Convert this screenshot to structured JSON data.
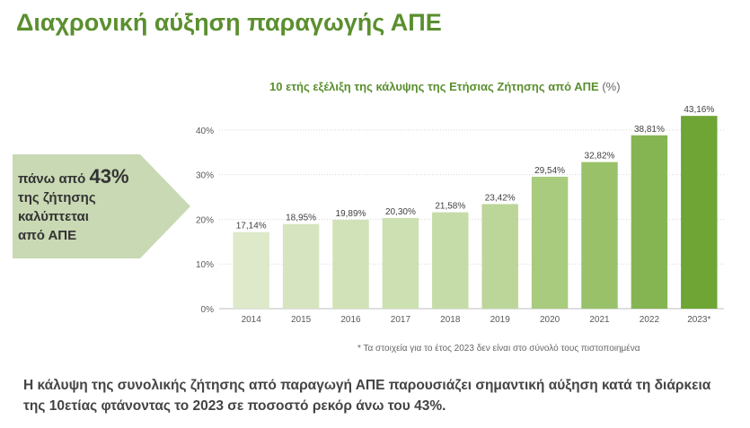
{
  "page": {
    "title": "Διαχρονική αύξηση παραγωγής ΑΠΕ",
    "summary": "Η κάλυψη της συνολικής ζήτησης από παραγωγή ΑΠΕ παρουσιάζει σημαντική αύξηση κατά τη διάρκεια της 10ετίας φτάνοντας το 2023 σε ποσοστό ρεκόρ άνω του 43%."
  },
  "callout": {
    "prefix": "πάνω από ",
    "highlight": "43%",
    "line2": "της ζήτησης",
    "line3": "καλύπτεται",
    "line4": "από ΑΠΕ",
    "color": "#c9d9b4"
  },
  "chart_data": {
    "type": "bar",
    "title": "10 ετής εξέλιξη της κάλυψης της Ετήσιας Ζήτησης από ΑΠΕ",
    "title_unit": "(%)",
    "categories": [
      "2014",
      "2015",
      "2016",
      "2017",
      "2018",
      "2019",
      "2020",
      "2021",
      "2022",
      "2023*"
    ],
    "values": [
      17.14,
      18.95,
      19.89,
      20.3,
      21.58,
      23.42,
      29.54,
      32.82,
      38.81,
      43.16
    ],
    "data_labels": [
      "17,14%",
      "18,95%",
      "19,89%",
      "20,30%",
      "21,58%",
      "23,42%",
      "29,54%",
      "32,82%",
      "38,81%",
      "43,16%"
    ],
    "bar_colors": [
      "#dde9c9",
      "#d6e5bf",
      "#d1e2b8",
      "#cde0b2",
      "#c6dca8",
      "#bcd699",
      "#a8cb7e",
      "#98c16a",
      "#85b553",
      "#6ea534"
    ],
    "ylim": [
      0,
      45
    ],
    "yticks": [
      0,
      10,
      20,
      30,
      40
    ],
    "ytick_labels": [
      "0%",
      "10%",
      "20%",
      "30%",
      "40%"
    ],
    "grid": true,
    "footnote": "* Τα στοιχεία για το έτος 2023 δεν είναι στο σύνολό τους πιστοποιημένα"
  }
}
